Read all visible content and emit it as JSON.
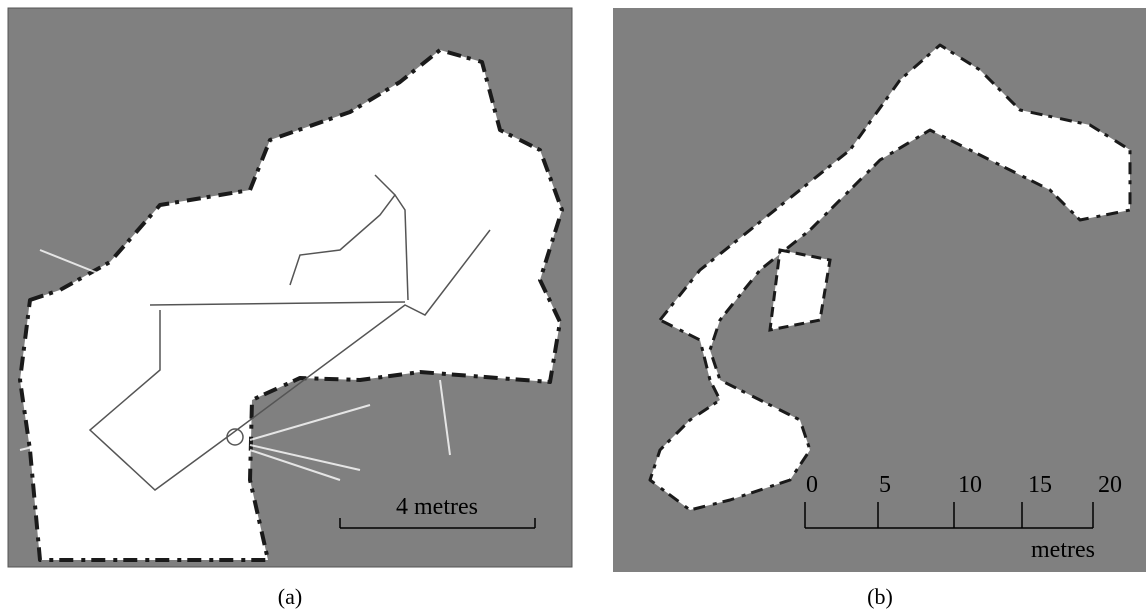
{
  "panels": [
    {
      "scale_label": "4 metres",
      "caption": "(a)"
    },
    {
      "scale_ticks": [
        "0",
        "5",
        "10",
        "15",
        "20"
      ],
      "scale_unit": "metres",
      "caption": "(b)"
    }
  ]
}
